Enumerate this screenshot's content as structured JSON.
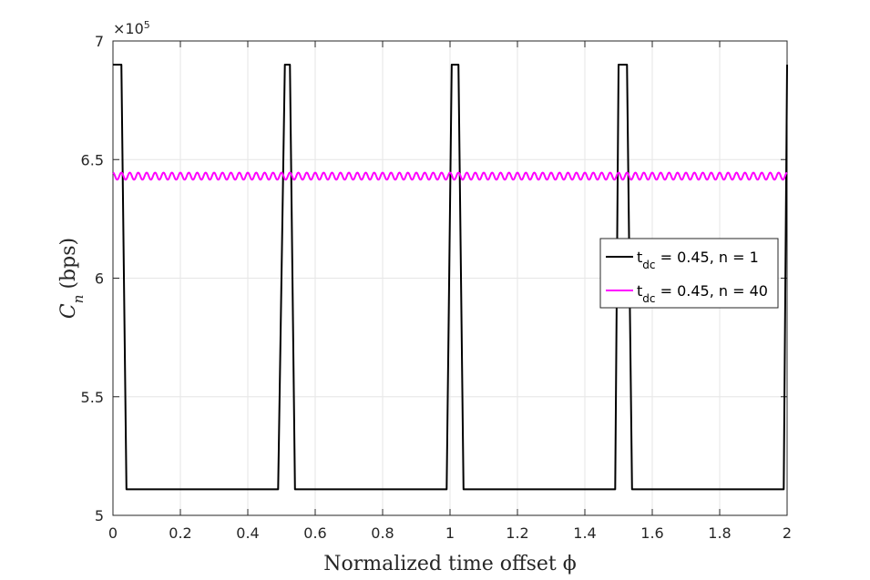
{
  "chart_data": {
    "type": "line",
    "xlabel": "Normalized time offset ϕ",
    "ylabel": "Cn (bps)",
    "ylabel_main": "C",
    "ylabel_sub": "n",
    "ylabel_unit": "(bps)",
    "y_multiplier_base": "×10",
    "y_multiplier_exp": "5",
    "xlim": [
      0,
      2
    ],
    "ylim": [
      5,
      7
    ],
    "xticks": [
      0,
      0.2,
      0.4,
      0.6,
      0.8,
      1,
      1.2,
      1.4,
      1.6,
      1.8,
      2
    ],
    "xtick_labels": [
      "0",
      "0.2",
      "0.4",
      "0.6",
      "0.8",
      "1",
      "1.2",
      "1.4",
      "1.6",
      "1.8",
      "2"
    ],
    "yticks": [
      5,
      5.5,
      6,
      6.5,
      7
    ],
    "ytick_labels": [
      "5",
      "5.5",
      "6",
      "6.5",
      "7"
    ],
    "grid": true,
    "legend_position": "right",
    "series": [
      {
        "name": "tdc = 0.45, n = 1",
        "name_main": "t",
        "name_sub": "dc",
        "name_rest": " = 0.45, n = 1",
        "color": "#000000",
        "x": [
          0,
          0.025,
          0.04,
          0.49,
          0.51,
          0.525,
          0.54,
          0.555,
          0.99,
          1.005,
          1.025,
          1.04,
          1.49,
          1.5,
          1.525,
          1.54,
          1.99,
          2.0
        ],
        "y": [
          6.9,
          6.9,
          5.11,
          5.11,
          6.9,
          6.9,
          5.11,
          5.11,
          5.11,
          6.9,
          6.9,
          5.11,
          5.11,
          6.9,
          6.9,
          5.11,
          5.11,
          6.9
        ]
      },
      {
        "name": "tdc = 0.45, n = 40",
        "name_main": "t",
        "name_sub": "dc",
        "name_rest": " = 0.45, n = 40",
        "color": "#ff00ff",
        "mean": 6.43,
        "ripple_amplitude": 0.015,
        "ripple_period": 0.025
      }
    ]
  }
}
